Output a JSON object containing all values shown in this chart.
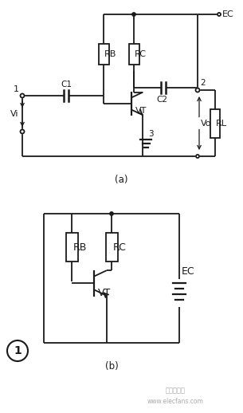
{
  "bg_color": "#ffffff",
  "line_color": "#1a1a1a",
  "fig_width": 3.05,
  "fig_height": 5.18,
  "dpi": 100,
  "watermark": "www.elecfans.com",
  "chinese_text": "电子发烧友",
  "label_a": "(a)",
  "label_b": "(b)",
  "label_EC_a": "EC",
  "label_RB_a": "RB",
  "label_RC_a": "RC",
  "label_C1": "C1",
  "label_C2": "C2",
  "label_VT_a": "VT",
  "label_2": "2",
  "label_3": "3",
  "label_Vi": "Vi",
  "label_Vo": "Vo",
  "label_RL": "RL",
  "label_RB_b": "RB",
  "label_RC_b": "RC",
  "label_VT_b": "VT",
  "label_EC_b": "EC",
  "circuit1_label": "1"
}
